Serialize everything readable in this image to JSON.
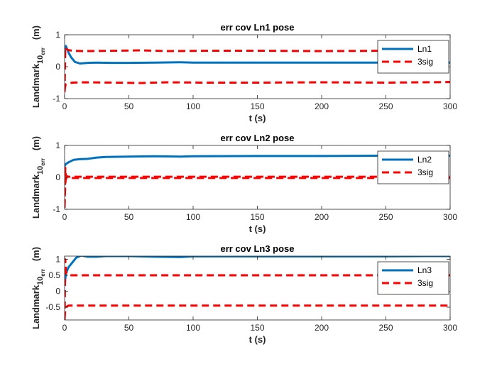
{
  "chart_data": [
    {
      "type": "line",
      "title": "err cov Ln1 pose",
      "xlabel": "t (s)",
      "ylabel_main": "Landmark",
      "ylabel_sub": "10",
      "ylabel_subsub": "err",
      "ylabel_unit": "(m)",
      "xlim": [
        0,
        300
      ],
      "ylim": [
        -1,
        1
      ],
      "xticks": [
        0,
        50,
        100,
        150,
        200,
        250,
        300
      ],
      "yticks": [
        -1,
        0,
        1
      ],
      "legend_position": "top-right",
      "series": [
        {
          "name": "Ln1",
          "style": "solid",
          "color": "#0072BD",
          "x": [
            0,
            1,
            3,
            5,
            8,
            12,
            18,
            25,
            35,
            50,
            70,
            90,
            100,
            150,
            200,
            250,
            300
          ],
          "y": [
            0.45,
            0.65,
            0.45,
            0.3,
            0.15,
            0.1,
            0.12,
            0.13,
            0.12,
            0.12,
            0.13,
            0.14,
            0.13,
            0.13,
            0.13,
            0.13,
            0.13
          ]
        },
        {
          "name": "3sig",
          "style": "dashed",
          "color": "#FF0000",
          "x": [
            0,
            0.5,
            1,
            3,
            6,
            15,
            40,
            60,
            80,
            110,
            150,
            200,
            250,
            300
          ],
          "y": [
            -0.8,
            0.6,
            0.55,
            0.52,
            0.5,
            0.49,
            0.5,
            0.51,
            0.49,
            0.5,
            0.5,
            0.49,
            0.5,
            0.48
          ]
        },
        {
          "name": "",
          "style": "dashed",
          "color": "#FF0000",
          "x": [
            0,
            0.5,
            1,
            3,
            6,
            15,
            40,
            60,
            80,
            110,
            150,
            200,
            250,
            300
          ],
          "y": [
            -0.75,
            -0.6,
            -0.55,
            -0.52,
            -0.5,
            -0.49,
            -0.5,
            -0.51,
            -0.49,
            -0.5,
            -0.5,
            -0.49,
            -0.5,
            -0.48
          ]
        }
      ]
    },
    {
      "type": "line",
      "title": "err cov Ln2 pose",
      "xlabel": "t (s)",
      "ylabel_main": "Landmark",
      "ylabel_sub": "10",
      "ylabel_subsub": "err",
      "ylabel_unit": "(m)",
      "xlim": [
        0,
        300
      ],
      "ylim": [
        -1,
        1
      ],
      "xticks": [
        0,
        50,
        100,
        150,
        200,
        250,
        300
      ],
      "yticks": [
        -1,
        0,
        1
      ],
      "legend_position": "top-right",
      "series": [
        {
          "name": "Ln2",
          "style": "solid",
          "color": "#0072BD",
          "x": [
            0,
            1,
            3,
            7,
            12,
            18,
            25,
            32,
            50,
            70,
            90,
            100,
            150,
            200,
            250,
            300
          ],
          "y": [
            0.35,
            0.42,
            0.47,
            0.55,
            0.57,
            0.58,
            0.62,
            0.64,
            0.65,
            0.66,
            0.65,
            0.66,
            0.67,
            0.67,
            0.68,
            0.68
          ]
        },
        {
          "name": "3sig",
          "style": "dashed",
          "color": "#FF0000",
          "x": [
            0,
            0.5,
            1,
            3,
            10,
            50,
            100,
            150,
            200,
            250,
            300
          ],
          "y": [
            -0.95,
            0.3,
            0.05,
            0.02,
            0.02,
            0.02,
            0.02,
            0.02,
            0.02,
            0.02,
            0.02
          ]
        },
        {
          "name": "",
          "style": "dashed",
          "color": "#FF0000",
          "x": [
            0,
            0.5,
            1,
            3,
            10,
            50,
            100,
            150,
            200,
            250,
            300
          ],
          "y": [
            -0.9,
            -0.2,
            -0.02,
            -0.02,
            -0.02,
            -0.02,
            -0.02,
            -0.02,
            -0.02,
            -0.02,
            -0.02
          ]
        }
      ]
    },
    {
      "type": "line",
      "title": "err cov Ln3 pose",
      "xlabel": "t (s)",
      "ylabel_main": "Landmark",
      "ylabel_sub": "10",
      "ylabel_subsub": "err",
      "ylabel_unit": "(m)",
      "xlim": [
        0,
        300
      ],
      "ylim": [
        -0.9,
        1.1
      ],
      "xticks": [
        0,
        50,
        100,
        150,
        200,
        250,
        300
      ],
      "yticks": [
        -0.5,
        0,
        0.5,
        1
      ],
      "legend_position": "top-right",
      "series": [
        {
          "name": "Ln3",
          "style": "solid",
          "color": "#0072BD",
          "x": [
            0,
            1,
            3,
            6,
            9,
            13,
            18,
            25,
            32,
            50,
            70,
            90,
            100,
            150,
            200,
            250,
            280,
            300
          ],
          "y": [
            0.2,
            0.55,
            0.75,
            0.9,
            1.05,
            1.12,
            1.08,
            1.08,
            1.1,
            1.1,
            1.08,
            1.07,
            1.09,
            1.09,
            1.09,
            1.09,
            1.1,
            1.1
          ]
        },
        {
          "name": "3sig",
          "style": "dashed",
          "color": "#FF0000",
          "x": [
            0,
            0.5,
            1,
            3,
            10,
            50,
            100,
            150,
            200,
            250,
            300
          ],
          "y": [
            -0.9,
            1.0,
            0.6,
            0.5,
            0.5,
            0.5,
            0.5,
            0.5,
            0.5,
            0.5,
            0.5
          ]
        },
        {
          "name": "",
          "style": "dashed",
          "color": "#FF0000",
          "x": [
            0,
            0.5,
            1,
            3,
            10,
            50,
            100,
            150,
            200,
            250,
            300
          ],
          "y": [
            -0.85,
            -0.6,
            -0.5,
            -0.45,
            -0.45,
            -0.45,
            -0.45,
            -0.45,
            -0.45,
            -0.45,
            -0.45
          ]
        }
      ]
    }
  ]
}
